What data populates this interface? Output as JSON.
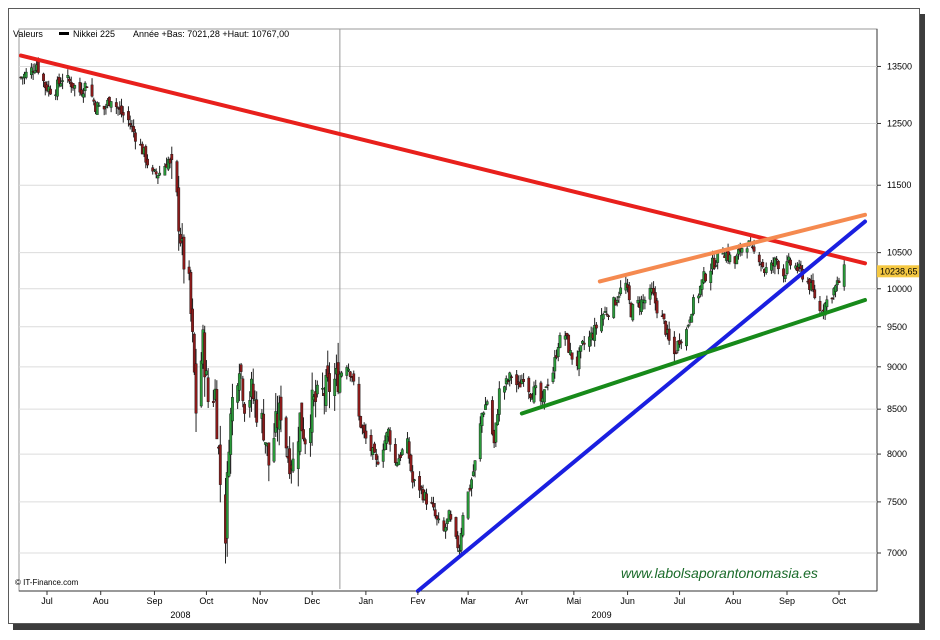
{
  "legend": {
    "prefix": "Valeurs",
    "series_name": "Nikkei 225",
    "stats": "Année +Bas: 7021,28 +Haut: 10767,00"
  },
  "credit": "© IT-Finance.com",
  "watermark": "www.labolsaporantonomasia.es",
  "last_price_label": "10238,65",
  "colors": {
    "up_candle": "#2a9a3a",
    "down_candle": "#8b1a1a",
    "resistance_red": "#e8201c",
    "trend_blue": "#1a1fe0",
    "support_green": "#178a1a",
    "channel_orange": "#f58a50",
    "last_price_bg": "#f5c842",
    "watermark": "#1a6b2a"
  },
  "chart_data": {
    "type": "candlestick",
    "title": "",
    "series_name": "Nikkei 225",
    "y_scale": "log",
    "ylim": [
      6650,
      14200
    ],
    "yticks": [
      7000,
      7500,
      8000,
      8500,
      9000,
      9500,
      10000,
      10500,
      11500,
      12500,
      13500
    ],
    "ytick_labels": [
      "7000",
      "7500",
      "8000",
      "8500",
      "9000",
      "9500",
      "10000",
      "10500",
      "11500",
      "12500",
      "13500"
    ],
    "xlim": [
      "2008-07-01",
      "2009-10-31"
    ],
    "xticks": [
      {
        "label": "Jul",
        "date": "2008-07-16"
      },
      {
        "label": "Aou",
        "date": "2008-08-16"
      },
      {
        "label": "Sep",
        "date": "2008-09-16"
      },
      {
        "label": "Oct",
        "date": "2008-10-16"
      },
      {
        "label": "Nov",
        "date": "2008-11-16"
      },
      {
        "label": "Dec",
        "date": "2008-12-16"
      },
      {
        "label": "Jan",
        "date": "2009-01-16"
      },
      {
        "label": "Fev",
        "date": "2009-02-15"
      },
      {
        "label": "Mar",
        "date": "2009-03-16"
      },
      {
        "label": "Avr",
        "date": "2009-04-16"
      },
      {
        "label": "Mai",
        "date": "2009-05-16"
      },
      {
        "label": "Jun",
        "date": "2009-06-16"
      },
      {
        "label": "Jul",
        "date": "2009-07-16"
      },
      {
        "label": "Aou",
        "date": "2009-08-16"
      },
      {
        "label": "Sep",
        "date": "2009-09-16"
      },
      {
        "label": "Oct",
        "date": "2009-10-16"
      }
    ],
    "year_labels": [
      {
        "label": "2008",
        "date": "2008-10-01"
      },
      {
        "label": "2009",
        "date": "2009-06-01"
      }
    ],
    "year_separator_date": "2009-01-01",
    "grid": "horizontal",
    "last_close": 10238.65,
    "approximate_closes": [
      [
        "2008-07-01",
        13300
      ],
      [
        "2008-07-06",
        13400
      ],
      [
        "2008-07-10",
        13550
      ],
      [
        "2008-07-15",
        13150
      ],
      [
        "2008-07-20",
        13050
      ],
      [
        "2008-07-25",
        13300
      ],
      [
        "2008-07-30",
        13200
      ],
      [
        "2008-08-04",
        13050
      ],
      [
        "2008-08-08",
        13200
      ],
      [
        "2008-08-13",
        12800
      ],
      [
        "2008-08-18",
        12750
      ],
      [
        "2008-08-22",
        12950
      ],
      [
        "2008-08-27",
        12700
      ],
      [
        "2008-09-01",
        12550
      ],
      [
        "2008-09-05",
        12300
      ],
      [
        "2008-09-10",
        12000
      ],
      [
        "2008-09-15",
        11650
      ],
      [
        "2008-09-19",
        11700
      ],
      [
        "2008-09-24",
        11900
      ],
      [
        "2008-09-28",
        11500
      ],
      [
        "2008-10-02",
        10500
      ],
      [
        "2008-10-06",
        10000
      ],
      [
        "2008-10-08",
        9300
      ],
      [
        "2008-10-10",
        8500
      ],
      [
        "2008-10-14",
        9300
      ],
      [
        "2008-10-17",
        8600
      ],
      [
        "2008-10-21",
        8700
      ],
      [
        "2008-10-24",
        7700
      ],
      [
        "2008-10-27",
        7200
      ],
      [
        "2008-10-29",
        8200
      ],
      [
        "2008-10-31",
        8600
      ],
      [
        "2008-11-04",
        9100
      ],
      [
        "2008-11-07",
        8600
      ],
      [
        "2008-11-11",
        8700
      ],
      [
        "2008-11-14",
        8500
      ],
      [
        "2008-11-18",
        8300
      ],
      [
        "2008-11-21",
        7900
      ],
      [
        "2008-11-25",
        8300
      ],
      [
        "2008-11-28",
        8500
      ],
      [
        "2008-12-02",
        8000
      ],
      [
        "2008-12-05",
        7900
      ],
      [
        "2008-12-09",
        8400
      ],
      [
        "2008-12-12",
        8200
      ],
      [
        "2008-12-16",
        8550
      ],
      [
        "2008-12-19",
        8600
      ],
      [
        "2008-12-23",
        8700
      ],
      [
        "2008-12-30",
        8850
      ],
      [
        "2009-01-05",
        9050
      ],
      [
        "2009-01-08",
        8900
      ],
      [
        "2009-01-12",
        8400
      ],
      [
        "2009-01-15",
        8200
      ],
      [
        "2009-01-19",
        8050
      ],
      [
        "2009-01-22",
        7900
      ],
      [
        "2009-01-26",
        8100
      ],
      [
        "2009-01-29",
        8250
      ],
      [
        "2009-02-02",
        7900
      ],
      [
        "2009-02-05",
        8000
      ],
      [
        "2009-02-09",
        8100
      ],
      [
        "2009-02-12",
        7700
      ],
      [
        "2009-02-16",
        7650
      ],
      [
        "2009-02-19",
        7550
      ],
      [
        "2009-02-23",
        7450
      ],
      [
        "2009-02-26",
        7300
      ],
      [
        "2009-03-02",
        7200
      ],
      [
        "2009-03-05",
        7350
      ],
      [
        "2009-03-09",
        7100
      ],
      [
        "2009-03-11",
        7050
      ],
      [
        "2009-03-13",
        7400
      ],
      [
        "2009-03-17",
        7650
      ],
      [
        "2009-03-20",
        7900
      ],
      [
        "2009-03-24",
        8450
      ],
      [
        "2009-03-27",
        8600
      ],
      [
        "2009-03-31",
        8100
      ],
      [
        "2009-04-03",
        8700
      ],
      [
        "2009-04-07",
        8800
      ],
      [
        "2009-04-10",
        8900
      ],
      [
        "2009-04-14",
        8750
      ],
      [
        "2009-04-17",
        8900
      ],
      [
        "2009-04-21",
        8700
      ],
      [
        "2009-04-24",
        8700
      ],
      [
        "2009-04-28",
        8550
      ],
      [
        "2009-04-30",
        8800
      ],
      [
        "2009-05-04",
        8950
      ],
      [
        "2009-05-07",
        9300
      ],
      [
        "2009-05-11",
        9400
      ],
      [
        "2009-05-14",
        9150
      ],
      [
        "2009-05-18",
        9050
      ],
      [
        "2009-05-21",
        9250
      ],
      [
        "2009-05-25",
        9350
      ],
      [
        "2009-05-28",
        9450
      ],
      [
        "2009-06-01",
        9650
      ],
      [
        "2009-06-04",
        9700
      ],
      [
        "2009-06-08",
        9800
      ],
      [
        "2009-06-11",
        9950
      ],
      [
        "2009-06-15",
        10050
      ],
      [
        "2009-06-18",
        9700
      ],
      [
        "2009-06-22",
        9800
      ],
      [
        "2009-06-26",
        9850
      ],
      [
        "2009-06-30",
        9950
      ],
      [
        "2009-07-03",
        9750
      ],
      [
        "2009-07-07",
        9550
      ],
      [
        "2009-07-10",
        9300
      ],
      [
        "2009-07-13",
        9150
      ],
      [
        "2009-07-16",
        9350
      ],
      [
        "2009-07-20",
        9450
      ],
      [
        "2009-07-23",
        9750
      ],
      [
        "2009-07-27",
        9950
      ],
      [
        "2009-07-30",
        10150
      ],
      [
        "2009-08-03",
        10300
      ],
      [
        "2009-08-06",
        10400
      ],
      [
        "2009-08-10",
        10550
      ],
      [
        "2009-08-13",
        10450
      ],
      [
        "2009-08-17",
        10350
      ],
      [
        "2009-08-20",
        10550
      ],
      [
        "2009-08-24",
        10650
      ],
      [
        "2009-08-27",
        10500
      ],
      [
        "2009-08-31",
        10450
      ],
      [
        "2009-09-03",
        10250
      ],
      [
        "2009-09-07",
        10300
      ],
      [
        "2009-09-10",
        10400
      ],
      [
        "2009-09-14",
        10200
      ],
      [
        "2009-09-17",
        10350
      ],
      [
        "2009-09-21",
        10300
      ],
      [
        "2009-09-25",
        10200
      ],
      [
        "2009-09-29",
        10050
      ],
      [
        "2009-10-02",
        9900
      ],
      [
        "2009-10-05",
        9700
      ],
      [
        "2009-10-08",
        9800
      ],
      [
        "2009-10-12",
        9950
      ],
      [
        "2009-10-15",
        10050
      ],
      [
        "2009-10-19",
        10238.65
      ]
    ],
    "trendlines": [
      {
        "color": "red",
        "from": [
          "2008-07-01",
          13700
        ],
        "to": [
          "2009-10-31",
          10350
        ]
      },
      {
        "color": "blue",
        "from": [
          "2009-02-15",
          6650
        ],
        "to": [
          "2009-10-31",
          10950
        ]
      },
      {
        "color": "green",
        "from": [
          "2009-04-16",
          8450
        ],
        "to": [
          "2009-10-31",
          9850
        ]
      },
      {
        "color": "orange",
        "from": [
          "2009-05-31",
          10100
        ],
        "to": [
          "2009-10-31",
          11050
        ]
      }
    ]
  }
}
